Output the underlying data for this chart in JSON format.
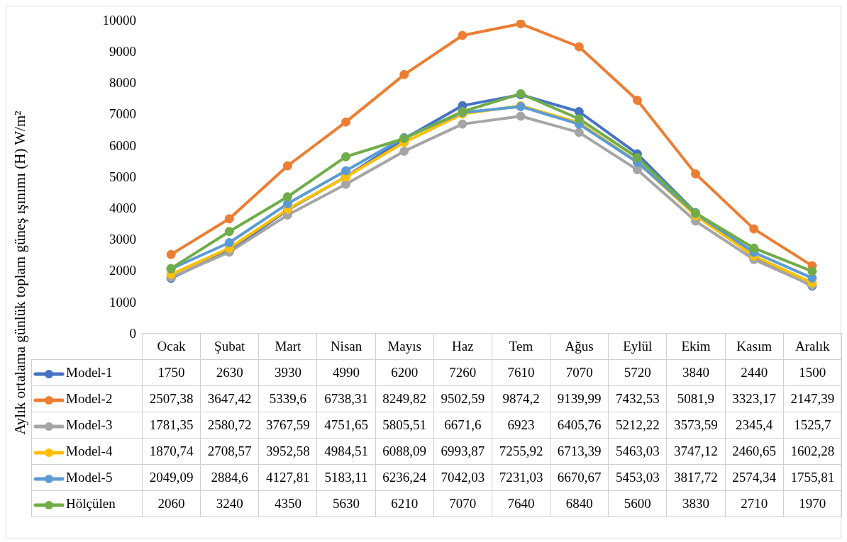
{
  "chart_data": {
    "type": "line",
    "ylabel": "Aylık ortalama günlük toplam güneş ışınımı (H) W/m²",
    "categories": [
      "Ocak",
      "Şubat",
      "Mart",
      "Nisan",
      "Mayıs",
      "Haz",
      "Tem",
      "Ağus",
      "Eylül",
      "Ekim",
      "Kasım",
      "Aralık"
    ],
    "ylim": [
      0,
      10000
    ],
    "yticks": [
      0,
      1000,
      2000,
      3000,
      4000,
      5000,
      6000,
      7000,
      8000,
      9000,
      10000
    ],
    "grid": false,
    "legend": "bottom",
    "marker": "circle",
    "line_style": "solid",
    "series": [
      {
        "name": "Model-1",
        "color": "#4472c4",
        "values": [
          1750,
          2630,
          3930,
          4990,
          6200,
          7260,
          7610,
          7070,
          5720,
          3840,
          2440,
          1500
        ],
        "value_labels": [
          "1750",
          "2630",
          "3930",
          "4990",
          "6200",
          "7260",
          "7610",
          "7070",
          "5720",
          "3840",
          "2440",
          "1500"
        ]
      },
      {
        "name": "Model-2",
        "color": "#ed7d31",
        "values": [
          2507.38,
          3647.42,
          5339.6,
          6738.31,
          8249.82,
          9502.59,
          9874.2,
          9139.99,
          7432.53,
          5081.9,
          3323.17,
          2147.39
        ],
        "value_labels": [
          "2507,38",
          "3647,42",
          "5339,6",
          "6738,31",
          "8249,82",
          "9502,59",
          "9874,2",
          "9139,99",
          "7432,53",
          "5081,9",
          "3323,17",
          "2147,39"
        ]
      },
      {
        "name": "Model-3",
        "color": "#a5a5a5",
        "values": [
          1781.35,
          2580.72,
          3767.59,
          4751.65,
          5805.51,
          6671.6,
          6923,
          6405.76,
          5212.22,
          3573.59,
          2345.4,
          1525.7
        ],
        "value_labels": [
          "1781,35",
          "2580,72",
          "3767,59",
          "4751,65",
          "5805,51",
          "6671,6",
          "6923",
          "6405,76",
          "5212,22",
          "3573,59",
          "2345,4",
          "1525,7"
        ]
      },
      {
        "name": "Model-4",
        "color": "#ffc000",
        "values": [
          1870.74,
          2708.57,
          3952.58,
          4984.51,
          6088.09,
          6993.87,
          7255.92,
          6713.39,
          5463.03,
          3747.12,
          2460.65,
          1602.28
        ],
        "value_labels": [
          "1870,74",
          "2708,57",
          "3952,58",
          "4984,51",
          "6088,09",
          "6993,87",
          "7255,92",
          "6713,39",
          "5463,03",
          "3747,12",
          "2460,65",
          "1602,28"
        ]
      },
      {
        "name": "Model-5",
        "color": "#5b9bd5",
        "values": [
          2049.09,
          2884.6,
          4127.81,
          5183.11,
          6236.24,
          7042.03,
          7231.03,
          6670.67,
          5453.03,
          3817.72,
          2574.34,
          1755.81
        ],
        "value_labels": [
          "2049,09",
          "2884,6",
          "4127,81",
          "5183,11",
          "6236,24",
          "7042,03",
          "7231,03",
          "6670,67",
          "5453,03",
          "3817,72",
          "2574,34",
          "1755,81"
        ]
      },
      {
        "name": "Hölçülen",
        "color": "#70ad47",
        "values": [
          2060,
          3240,
          4350,
          5630,
          6210,
          7070,
          7640,
          6840,
          5600,
          3830,
          2710,
          1970
        ],
        "value_labels": [
          "2060",
          "3240",
          "4350",
          "5630",
          "6210",
          "7070",
          "7640",
          "6840",
          "5600",
          "3830",
          "2710",
          "1970"
        ]
      }
    ]
  }
}
